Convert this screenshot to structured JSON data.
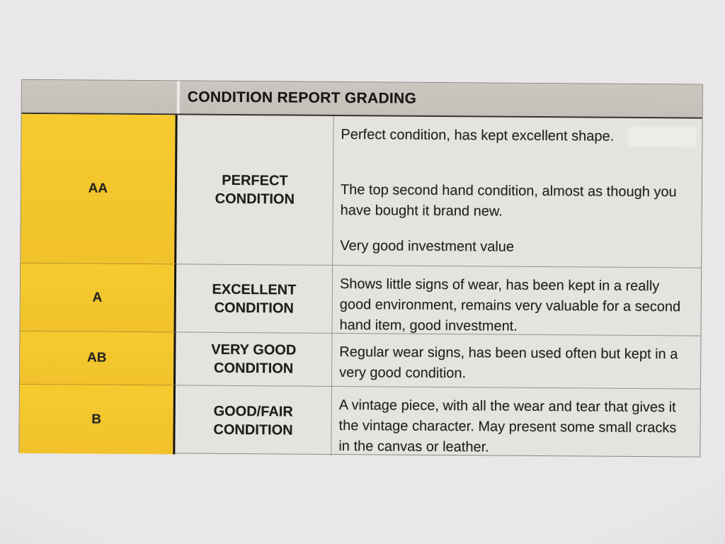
{
  "document": {
    "title": "CONDITION REPORT GRADING",
    "grades": [
      {
        "code": "AA",
        "label": "PERFECT CONDITION",
        "descriptions": [
          "Perfect condition, has kept excellent shape.",
          "The top second hand condition, almost as though you have bought it brand new.",
          "Very good investment value"
        ]
      },
      {
        "code": "A",
        "label": "EXCELLENT CONDITION",
        "descriptions": [
          "Shows little signs of wear, has been kept in a really good environment, remains very valuable for a second hand item, good investment."
        ]
      },
      {
        "code": "AB",
        "label": "VERY GOOD CONDITION",
        "descriptions": [
          "Regular wear signs, has been used often but kept in a very good condition."
        ]
      },
      {
        "code": "B",
        "label": "GOOD/FAIR CONDITION",
        "descriptions": [
          "A vintage piece, with all the wear and tear that gives it the vintage character. May present some small cracks in the canvas or leather."
        ]
      }
    ],
    "colors": {
      "grade_highlight": "#f2c52d",
      "header_bar": "#c6c2bc",
      "paper": "#e9e7e9",
      "text": "#1f1e1c"
    }
  }
}
